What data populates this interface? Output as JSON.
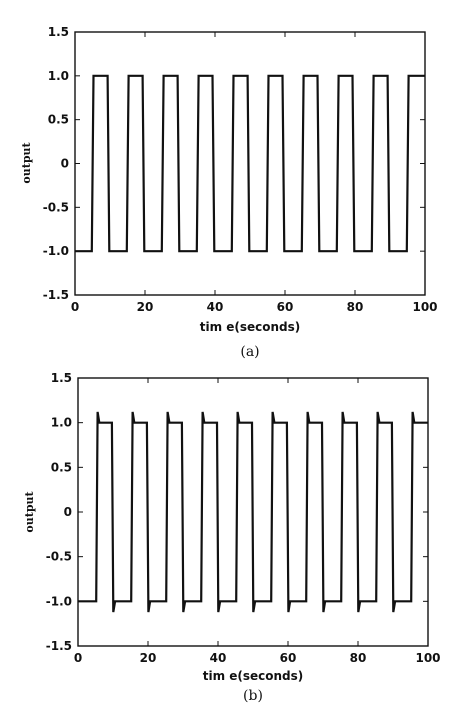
{
  "chart_data": [
    {
      "type": "line",
      "caption": "(a)",
      "xlabel": "tim e(seconds)",
      "ylabel": "output",
      "xlim": [
        0,
        100
      ],
      "ylim": [
        -1.5,
        1.5
      ],
      "x_ticks": [
        "0",
        "20",
        "40",
        "60",
        "80",
        "100"
      ],
      "y_ticks": [
        "1.5",
        "1.0",
        "0.5",
        "0",
        "-0.5",
        "-1.0",
        "-1.5"
      ],
      "series": [
        {
          "x": [
            0,
            4.8,
            5.3,
            9.3,
            9.8,
            14.8,
            15.3,
            19.3,
            19.8,
            24.8,
            25.3,
            29.3,
            29.8,
            34.8,
            35.3,
            39.3,
            39.8,
            44.8,
            45.3,
            49.3,
            49.8,
            54.8,
            55.3,
            59.3,
            59.8,
            64.8,
            65.3,
            69.3,
            69.8,
            74.8,
            75.3,
            79.3,
            79.8,
            84.8,
            85.3,
            89.3,
            89.8,
            94.8,
            95.3,
            100
          ],
          "y": [
            -1,
            -1,
            1,
            1,
            -1,
            -1,
            1,
            1,
            -1,
            -1,
            1,
            1,
            -1,
            -1,
            1,
            1,
            -1,
            -1,
            1,
            1,
            -1,
            -1,
            1,
            1,
            -1,
            -1,
            1,
            1,
            -1,
            -1,
            1,
            1,
            -1,
            -1,
            1,
            1,
            -1,
            -1,
            1,
            1
          ]
        }
      ]
    },
    {
      "type": "line",
      "caption": "(b)",
      "xlabel": "tim e(seconds)",
      "ylabel": "output",
      "xlim": [
        0,
        100
      ],
      "ylim": [
        -1.5,
        1.5
      ],
      "x_ticks": [
        "0",
        "20",
        "40",
        "60",
        "80",
        "100"
      ],
      "y_ticks": [
        "1.5",
        "1.0",
        "0.5",
        "0",
        "-0.5",
        "-1.0",
        "-1.5"
      ],
      "series": [
        {
          "x": [
            0,
            5.2,
            5.6,
            6.1,
            9.7,
            10.1,
            10.6,
            15.2,
            15.6,
            16.1,
            19.7,
            20.1,
            20.6,
            25.2,
            25.6,
            26.1,
            29.7,
            30.1,
            30.6,
            35.2,
            35.6,
            36.1,
            39.7,
            40.1,
            40.6,
            45.2,
            45.6,
            46.1,
            49.7,
            50.1,
            50.6,
            55.2,
            55.6,
            56.1,
            59.7,
            60.1,
            60.6,
            65.2,
            65.6,
            66.1,
            69.7,
            70.1,
            70.6,
            75.2,
            75.6,
            76.1,
            79.7,
            80.1,
            80.6,
            85.2,
            85.6,
            86.1,
            89.7,
            90.1,
            90.6,
            95.2,
            95.6,
            96.1,
            100
          ],
          "y": [
            -1,
            -1,
            1.12,
            1,
            1,
            -1.12,
            -1,
            -1,
            1.12,
            1,
            1,
            -1.12,
            -1,
            -1,
            1.12,
            1,
            1,
            -1.12,
            -1,
            -1,
            1.12,
            1,
            1,
            -1.12,
            -1,
            -1,
            1.12,
            1,
            1,
            -1.12,
            -1,
            -1,
            1.12,
            1,
            1,
            -1.12,
            -1,
            -1,
            1.12,
            1,
            1,
            -1.12,
            -1,
            -1,
            1.12,
            1,
            1,
            -1.12,
            -1,
            -1,
            1.12,
            1,
            1,
            -1.12,
            -1,
            -1,
            1.12,
            1,
            1
          ]
        }
      ]
    }
  ]
}
